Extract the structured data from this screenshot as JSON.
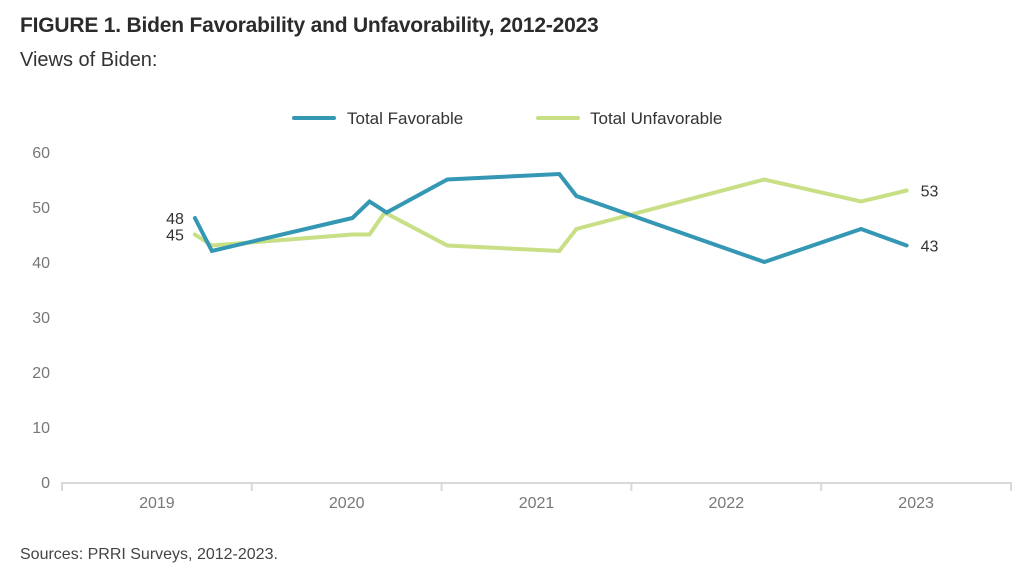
{
  "header": {
    "title": "FIGURE 1. Biden Favorability and Unfavorability, 2012-2023",
    "subtitle": "Views of Biden:"
  },
  "footer": {
    "source": "Sources: PRRI Surveys, 2012-2023."
  },
  "chart_data": {
    "type": "line",
    "title": "FIGURE 1. Biden Favorability and Unfavorability, 2012-2023",
    "subtitle": "Views of Biden:",
    "xlabel": "",
    "ylabel": "",
    "x_ticks": [
      "2019",
      "2020",
      "2021",
      "2022",
      "2023"
    ],
    "xlim": [
      2019.0,
      2024.0
    ],
    "ylim": [
      0,
      60
    ],
    "y_ticks": [
      0,
      10,
      20,
      30,
      40,
      50,
      60
    ],
    "grid": false,
    "legend_position": "top-center",
    "series": [
      {
        "name": "Total Favorable",
        "color": "#3497b4",
        "x": [
          2019.7,
          2019.79,
          2020.53,
          2020.62,
          2020.71,
          2021.03,
          2021.62,
          2021.71,
          2022.7,
          2023.21,
          2023.45
        ],
        "values": [
          48,
          42,
          48,
          51,
          49,
          55,
          56,
          52,
          40,
          46,
          43
        ],
        "end_labels": {
          "first": "48",
          "last": "43"
        }
      },
      {
        "name": "Total Unfavorable",
        "color": "#c8df86",
        "x": [
          2019.7,
          2019.79,
          2020.53,
          2020.62,
          2020.7,
          2021.03,
          2021.62,
          2021.71,
          2022.7,
          2023.21,
          2023.45
        ],
        "values": [
          45,
          43,
          45,
          45,
          49,
          43,
          42,
          46,
          55,
          51,
          53
        ],
        "end_labels": {
          "first": "45",
          "last": "53"
        }
      }
    ]
  }
}
